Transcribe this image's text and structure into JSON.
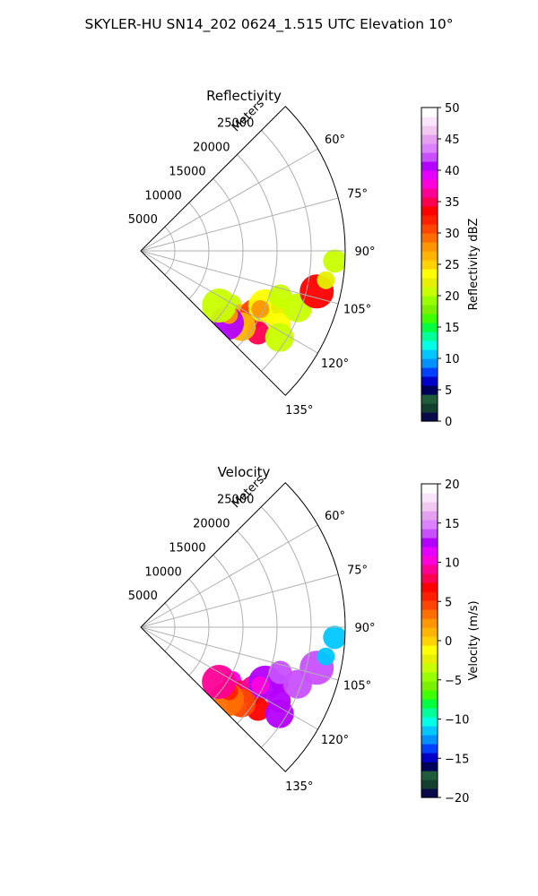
{
  "figure_title": "SKYLER-HU  SN14_202  0624_1.515 UTC Elevation 10°",
  "chart_data": [
    {
      "type": "heatmap",
      "projection": "polar-sector",
      "title": "Reflectivity",
      "radial_label": "Meters",
      "radial_ticks": [
        5000,
        10000,
        15000,
        20000,
        25000
      ],
      "radial_max": 30000,
      "angle_range_deg": [
        45,
        135
      ],
      "angle_tick_labels": [
        {
          "deg": 60,
          "label": "60°"
        },
        {
          "deg": 75,
          "label": "75°"
        },
        {
          "deg": 90,
          "label": "90°"
        },
        {
          "deg": 105,
          "label": "105°"
        },
        {
          "deg": 120,
          "label": "120°"
        },
        {
          "deg": 135,
          "label": "135°"
        }
      ],
      "grid": true,
      "colorbar": {
        "label": "Reflectivity dBZ",
        "range": [
          0,
          50
        ],
        "ticks": [
          "0",
          "5",
          "10",
          "15",
          "20",
          "25",
          "30",
          "35",
          "40",
          "45",
          "50"
        ],
        "colors": [
          "#0a0a4a",
          "#123f2e",
          "#1f5c3a",
          "#00005a",
          "#0000c8",
          "#0040ff",
          "#0090ff",
          "#00c8ff",
          "#00ffe6",
          "#00ff9a",
          "#00ff40",
          "#40ff00",
          "#7aef00",
          "#98ff00",
          "#c8ff00",
          "#e6f000",
          "#ffff00",
          "#ffd200",
          "#ffb400",
          "#ff9600",
          "#ff6e00",
          "#ff4600",
          "#ff2000",
          "#ff0000",
          "#ff0050",
          "#ff0096",
          "#ff00dc",
          "#e600ff",
          "#b400ff",
          "#c850ff",
          "#dc82ff",
          "#e6a0f0",
          "#f0c8f0",
          "#fae6fa",
          "#ffffff"
        ],
        "position": "right"
      },
      "echoes": [
        {
          "r": 15500,
          "theta": 120,
          "dbz": 21
        },
        {
          "r": 17500,
          "theta": 123,
          "dbz": 27
        },
        {
          "r": 19000,
          "theta": 119,
          "dbz": 30
        },
        {
          "r": 20000,
          "theta": 114,
          "dbz": 24
        },
        {
          "r": 22000,
          "theta": 112,
          "dbz": 22
        },
        {
          "r": 21000,
          "theta": 125,
          "dbz": 35
        },
        {
          "r": 18500,
          "theta": 127,
          "dbz": 26
        },
        {
          "r": 16500,
          "theta": 130,
          "dbz": 40
        },
        {
          "r": 16000,
          "theta": 126,
          "dbz": 28
        },
        {
          "r": 23000,
          "theta": 118,
          "dbz": 23
        },
        {
          "r": 24500,
          "theta": 110,
          "dbz": 21
        },
        {
          "r": 26500,
          "theta": 103,
          "dbz": 34
        },
        {
          "r": 27500,
          "theta": 99,
          "dbz": 22
        },
        {
          "r": 28500,
          "theta": 93,
          "dbz": 21
        },
        {
          "r": 24000,
          "theta": 122,
          "dbz": 20
        },
        {
          "r": 14000,
          "theta": 125,
          "dbz": 20
        },
        {
          "r": 19500,
          "theta": 116,
          "dbz": 28
        },
        {
          "r": 21500,
          "theta": 108,
          "dbz": 20
        }
      ]
    },
    {
      "type": "heatmap",
      "projection": "polar-sector",
      "title": "Velocity",
      "radial_label": "Meters",
      "radial_ticks": [
        5000,
        10000,
        15000,
        20000,
        25000
      ],
      "radial_max": 30000,
      "angle_range_deg": [
        45,
        135
      ],
      "angle_tick_labels": [
        {
          "deg": 60,
          "label": "60°"
        },
        {
          "deg": 75,
          "label": "75°"
        },
        {
          "deg": 90,
          "label": "90°"
        },
        {
          "deg": 105,
          "label": "105°"
        },
        {
          "deg": 120,
          "label": "120°"
        },
        {
          "deg": 135,
          "label": "135°"
        }
      ],
      "grid": true,
      "colorbar": {
        "label": "Velocity (m/s)",
        "range": [
          -20,
          20
        ],
        "ticks": [
          "−20",
          "−15",
          "−10",
          "−5",
          "0",
          "5",
          "10",
          "15",
          "20"
        ],
        "colors": [
          "#0a0a4a",
          "#123f2e",
          "#1f5c3a",
          "#00005a",
          "#0000c8",
          "#0040ff",
          "#0090ff",
          "#00c8ff",
          "#00ffe6",
          "#00ff9a",
          "#00ff40",
          "#40ff00",
          "#7aef00",
          "#98ff00",
          "#c8ff00",
          "#e6f000",
          "#ffff00",
          "#ffd200",
          "#ffb400",
          "#ff9600",
          "#ff6e00",
          "#ff4600",
          "#ff2000",
          "#ff0000",
          "#ff0050",
          "#ff0096",
          "#ff00dc",
          "#e600ff",
          "#b400ff",
          "#c850ff",
          "#dc82ff",
          "#e6a0f0",
          "#f0c8f0",
          "#fae6fa",
          "#ffffff"
        ],
        "position": "right"
      },
      "echoes": [
        {
          "r": 15500,
          "theta": 120,
          "vel": 10
        },
        {
          "r": 17500,
          "theta": 123,
          "vel": 8
        },
        {
          "r": 19000,
          "theta": 119,
          "vel": 9
        },
        {
          "r": 20000,
          "theta": 114,
          "vel": 12
        },
        {
          "r": 22000,
          "theta": 112,
          "vel": 13
        },
        {
          "r": 21000,
          "theta": 125,
          "vel": 7
        },
        {
          "r": 18500,
          "theta": 127,
          "vel": 4
        },
        {
          "r": 16500,
          "theta": 130,
          "vel": 3
        },
        {
          "r": 16000,
          "theta": 126,
          "vel": 6
        },
        {
          "r": 23000,
          "theta": 118,
          "vel": 12
        },
        {
          "r": 24500,
          "theta": 110,
          "vel": 14
        },
        {
          "r": 26500,
          "theta": 103,
          "vel": 14
        },
        {
          "r": 27500,
          "theta": 99,
          "vel": -11
        },
        {
          "r": 28500,
          "theta": 93,
          "vel": -11
        },
        {
          "r": 24000,
          "theta": 122,
          "vel": 13
        },
        {
          "r": 14000,
          "theta": 125,
          "vel": 9
        },
        {
          "r": 19500,
          "theta": 116,
          "vel": 10
        },
        {
          "r": 21500,
          "theta": 108,
          "vel": 14
        }
      ]
    }
  ]
}
